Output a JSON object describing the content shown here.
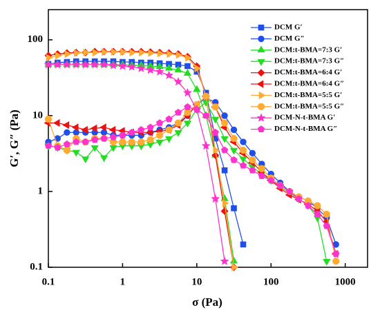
{
  "chart_data": {
    "type": "line",
    "xlabel": "σ (Pa)",
    "ylabel": "G′, G″ (Pa)",
    "xscale": "log",
    "yscale": "log",
    "xlim": [
      0.1,
      2000
    ],
    "ylim": [
      0.1,
      250
    ],
    "xticks": [
      0.1,
      1,
      10,
      100,
      1000
    ],
    "yticks": [
      0.1,
      1,
      10,
      100
    ],
    "legend": "upper right",
    "x": [
      0.1,
      0.133,
      0.178,
      0.237,
      0.316,
      0.422,
      0.562,
      0.75,
      1,
      1.33,
      1.78,
      2.37,
      3.16,
      4.22,
      5.62,
      7.5,
      10,
      13.3,
      17.8,
      23.7,
      31.6,
      42.2,
      56.2,
      75,
      100,
      133,
      178,
      237,
      316,
      422,
      562,
      750,
      1000
    ],
    "series": [
      {
        "name": "DCM G′",
        "color": "#1f4fe8",
        "marker": "square",
        "values": [
          48,
          50,
          51,
          52,
          52,
          52,
          52,
          52,
          51,
          51,
          50,
          50,
          49,
          48,
          47,
          45,
          38,
          20,
          5,
          1.9,
          0.6,
          0.2,
          null,
          null,
          null,
          null,
          null,
          null,
          null,
          null,
          null,
          null,
          null
        ]
      },
      {
        "name": "DCM G″",
        "color": "#1f4fe8",
        "marker": "circle",
        "values": [
          4.5,
          5,
          6,
          6,
          6,
          6,
          6,
          5.5,
          5.5,
          5.5,
          5.5,
          6,
          6.5,
          7,
          8,
          10,
          14,
          17,
          15,
          10,
          6.5,
          4.5,
          3.2,
          2.3,
          1.7,
          1.3,
          1,
          0.85,
          0.75,
          0.6,
          0.45,
          0.2,
          null
        ]
      },
      {
        "name": "DCM:t-BMA=7:3 G′",
        "color": "#22dd22",
        "marker": "triangle-up",
        "values": [
          47,
          47,
          47,
          47,
          47,
          47,
          47,
          47,
          47,
          46,
          46,
          45,
          44,
          42,
          40,
          36,
          22,
          10,
          3,
          0.8,
          0.12,
          null,
          null,
          null,
          null,
          null,
          null,
          null,
          null,
          null,
          null,
          null,
          null
        ]
      },
      {
        "name": "DCM:t-BMA=7:3 G″",
        "color": "#22dd22",
        "marker": "triangle-down",
        "values": [
          4,
          3.8,
          3.5,
          3.3,
          2.7,
          3.8,
          2.8,
          3.8,
          4,
          4,
          4,
          4.2,
          4.5,
          5,
          6,
          8,
          12,
          15,
          9,
          5,
          3.5,
          2.7,
          2.1,
          1.7,
          1.4,
          1.15,
          0.95,
          0.8,
          0.65,
          0.45,
          0.12,
          null,
          null
        ]
      },
      {
        "name": "DCM:t-BMA=6:4 G′",
        "color": "#ee1111",
        "marker": "diamond",
        "values": [
          62,
          65,
          67,
          68,
          68,
          70,
          70,
          70,
          70,
          70,
          70,
          69,
          68,
          67,
          65,
          60,
          45,
          18,
          3,
          0.55,
          0.1,
          null,
          null,
          null,
          null,
          null,
          null,
          null,
          null,
          null,
          null,
          null,
          null
        ]
      },
      {
        "name": "DCM:t-BMA=6:4 G″",
        "color": "#ee1111",
        "marker": "triangle-left",
        "values": [
          8,
          8,
          7.5,
          7,
          6.5,
          6.8,
          7,
          6.5,
          6.3,
          6,
          6,
          6,
          6.2,
          6.5,
          7.5,
          10,
          14,
          18,
          13,
          7,
          4.5,
          3.2,
          2.4,
          1.8,
          1.4,
          1.1,
          0.9,
          0.78,
          0.68,
          0.55,
          0.4,
          0.15,
          null
        ]
      },
      {
        "name": "DCM:t-BMA=5:5 G′",
        "color": "#ffaa33",
        "marker": "triangle-right",
        "values": [
          58,
          62,
          65,
          67,
          68,
          68,
          69,
          69,
          69,
          68,
          68,
          67,
          66,
          65,
          63,
          58,
          42,
          18,
          3.5,
          0.7,
          0.1,
          null,
          null,
          null,
          null,
          null,
          null,
          null,
          null,
          null,
          null,
          null,
          null
        ]
      },
      {
        "name": "DCM:t-BMA=5:5 G″",
        "color": "#ffaa33",
        "marker": "hexagon",
        "values": [
          9,
          4,
          3.5,
          5,
          4.5,
          5,
          5,
          4.5,
          4.5,
          4.5,
          4.5,
          4.8,
          5.5,
          6.5,
          8,
          11,
          14,
          18,
          13,
          8,
          5,
          3.5,
          2.6,
          2,
          1.5,
          1.2,
          1,
          0.85,
          0.75,
          0.65,
          0.5,
          0.12,
          null
        ]
      },
      {
        "name": "DCM-N-t-BMA G′",
        "color": "#ff33cc",
        "marker": "star",
        "values": [
          47,
          47,
          47,
          47,
          47,
          47,
          47,
          46,
          45,
          44,
          42,
          40,
          38,
          34,
          28,
          20,
          12,
          4,
          0.8,
          0.12,
          null,
          null,
          null,
          null,
          null,
          null,
          null,
          null,
          null,
          null,
          null,
          null,
          null
        ]
      },
      {
        "name": "DCM-N-t-BMA G″",
        "color": "#ff33cc",
        "marker": "pentagon",
        "values": [
          4,
          3.8,
          4.2,
          4.5,
          4.5,
          4.8,
          5,
          5.2,
          5.5,
          6,
          6.5,
          7,
          8,
          9,
          11,
          13,
          12,
          10,
          6,
          3.5,
          2.6,
          2.2,
          1.9,
          1.6,
          1.4,
          1.2,
          1,
          0.8,
          0.65,
          0.5,
          0.35,
          0.15,
          null
        ]
      }
    ]
  }
}
